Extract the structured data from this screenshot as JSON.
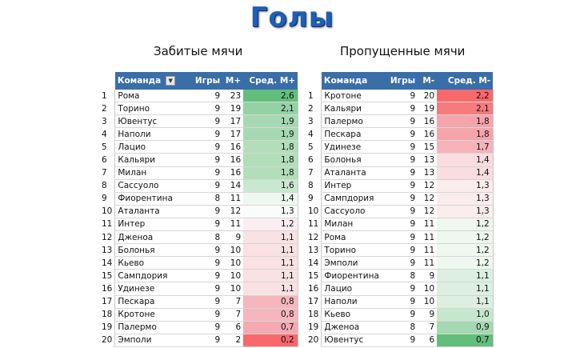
{
  "title": "Голы",
  "left": {
    "subtitle": "Забитые мячи",
    "headers": {
      "team": "Команда",
      "games": "Игры",
      "goals": "М+",
      "avg": "Сред. М+"
    },
    "rows": [
      {
        "rank": "1",
        "team": "Рома",
        "games": "9",
        "goals": "23",
        "avg": "2,6",
        "color": "#63be7b"
      },
      {
        "rank": "2",
        "team": "Торино",
        "games": "9",
        "goals": "19",
        "avg": "2,1",
        "color": "#93d2a4"
      },
      {
        "rank": "3",
        "team": "Ювентус",
        "games": "9",
        "goals": "17",
        "avg": "1,9",
        "color": "#a6d9b3"
      },
      {
        "rank": "4",
        "team": "Наполи",
        "games": "9",
        "goals": "17",
        "avg": "1,9",
        "color": "#a6d9b3"
      },
      {
        "rank": "5",
        "team": "Лацио",
        "games": "9",
        "goals": "16",
        "avg": "1,8",
        "color": "#b2deb9"
      },
      {
        "rank": "6",
        "team": "Кальяри",
        "games": "9",
        "goals": "16",
        "avg": "1,8",
        "color": "#b2deb9"
      },
      {
        "rank": "7",
        "team": "Милан",
        "games": "9",
        "goals": "16",
        "avg": "1,8",
        "color": "#b2deb9"
      },
      {
        "rank": "8",
        "team": "Сассуоло",
        "games": "9",
        "goals": "14",
        "avg": "1,6",
        "color": "#c9e8d0"
      },
      {
        "rank": "9",
        "team": "Фиорентина",
        "games": "8",
        "goals": "11",
        "avg": "1,4",
        "color": "#eef7f0"
      },
      {
        "rank": "10",
        "team": "Аталанта",
        "games": "9",
        "goals": "12",
        "avg": "1,3",
        "color": "#f9fcfa"
      },
      {
        "rank": "11",
        "team": "Интер",
        "games": "9",
        "goals": "11",
        "avg": "1,2",
        "color": "#fbeef0"
      },
      {
        "rank": "12",
        "team": "Дженоа",
        "games": "8",
        "goals": "9",
        "avg": "1,1",
        "color": "#f9e1e4"
      },
      {
        "rank": "13",
        "team": "Болонья",
        "games": "9",
        "goals": "10",
        "avg": "1,1",
        "color": "#f9e1e4"
      },
      {
        "rank": "14",
        "team": "Кьево",
        "games": "9",
        "goals": "10",
        "avg": "1,1",
        "color": "#f9e1e4"
      },
      {
        "rank": "15",
        "team": "Сампдория",
        "games": "9",
        "goals": "10",
        "avg": "1,1",
        "color": "#f9e1e4"
      },
      {
        "rank": "16",
        "team": "Удинезе",
        "games": "9",
        "goals": "10",
        "avg": "1,1",
        "color": "#f9e1e4"
      },
      {
        "rank": "17",
        "team": "Пескара",
        "games": "9",
        "goals": "7",
        "avg": "0,8",
        "color": "#f5b6bd"
      },
      {
        "rank": "18",
        "team": "Кротоне",
        "games": "9",
        "goals": "7",
        "avg": "0,8",
        "color": "#f5b6bd"
      },
      {
        "rank": "19",
        "team": "Палермо",
        "games": "9",
        "goals": "6",
        "avg": "0,7",
        "color": "#f4a9b1"
      },
      {
        "rank": "20",
        "team": "Эмполи",
        "games": "9",
        "goals": "2",
        "avg": "0,2",
        "color": "#f8696b"
      }
    ]
  },
  "right": {
    "subtitle": "Пропущенные мячи",
    "headers": {
      "team": "Команда",
      "games": "Игры",
      "goals": "М-",
      "avg": "Сред. М-"
    },
    "rows": [
      {
        "rank": "1",
        "team": "Кротоне",
        "games": "9",
        "goals": "20",
        "avg": "2,2",
        "color": "#f8696b"
      },
      {
        "rank": "2",
        "team": "Кальяри",
        "games": "9",
        "goals": "19",
        "avg": "2,1",
        "color": "#f77a7d"
      },
      {
        "rank": "3",
        "team": "Палермо",
        "games": "9",
        "goals": "16",
        "avg": "1,8",
        "color": "#f5a4ac"
      },
      {
        "rank": "4",
        "team": "Пескара",
        "games": "9",
        "goals": "16",
        "avg": "1,8",
        "color": "#f5a4ac"
      },
      {
        "rank": "5",
        "team": "Удинезе",
        "games": "9",
        "goals": "15",
        "avg": "1,7",
        "color": "#f6b3ba"
      },
      {
        "rank": "6",
        "team": "Болонья",
        "games": "9",
        "goals": "13",
        "avg": "1,4",
        "color": "#f9dde1"
      },
      {
        "rank": "7",
        "team": "Аталанта",
        "games": "9",
        "goals": "13",
        "avg": "1,4",
        "color": "#f9dde1"
      },
      {
        "rank": "8",
        "team": "Интер",
        "games": "9",
        "goals": "12",
        "avg": "1,3",
        "color": "#fbecee"
      },
      {
        "rank": "9",
        "team": "Сампдория",
        "games": "9",
        "goals": "12",
        "avg": "1,3",
        "color": "#fbecee"
      },
      {
        "rank": "10",
        "team": "Сассуоло",
        "games": "9",
        "goals": "12",
        "avg": "1,3",
        "color": "#fbecee"
      },
      {
        "rank": "11",
        "team": "Милан",
        "games": "9",
        "goals": "11",
        "avg": "1,2",
        "color": "#eef7f0"
      },
      {
        "rank": "12",
        "team": "Рома",
        "games": "9",
        "goals": "11",
        "avg": "1,2",
        "color": "#eef7f0"
      },
      {
        "rank": "13",
        "team": "Торино",
        "games": "9",
        "goals": "11",
        "avg": "1,2",
        "color": "#eef7f0"
      },
      {
        "rank": "14",
        "team": "Эмполи",
        "games": "9",
        "goals": "11",
        "avg": "1,2",
        "color": "#eef7f0"
      },
      {
        "rank": "15",
        "team": "Фиорентина",
        "games": "8",
        "goals": "9",
        "avg": "1,1",
        "color": "#dcefe1"
      },
      {
        "rank": "16",
        "team": "Лацио",
        "games": "9",
        "goals": "10",
        "avg": "1,1",
        "color": "#dcefe1"
      },
      {
        "rank": "17",
        "team": "Наполи",
        "games": "9",
        "goals": "10",
        "avg": "1,1",
        "color": "#dcefe1"
      },
      {
        "rank": "18",
        "team": "Кьево",
        "games": "9",
        "goals": "9",
        "avg": "1,0",
        "color": "#c6e7ce"
      },
      {
        "rank": "19",
        "team": "Дженоа",
        "games": "8",
        "goals": "7",
        "avg": "0,9",
        "color": "#a4d8b1"
      },
      {
        "rank": "20",
        "team": "Ювентус",
        "games": "9",
        "goals": "6",
        "avg": "0,7",
        "color": "#63be7b"
      }
    ]
  }
}
